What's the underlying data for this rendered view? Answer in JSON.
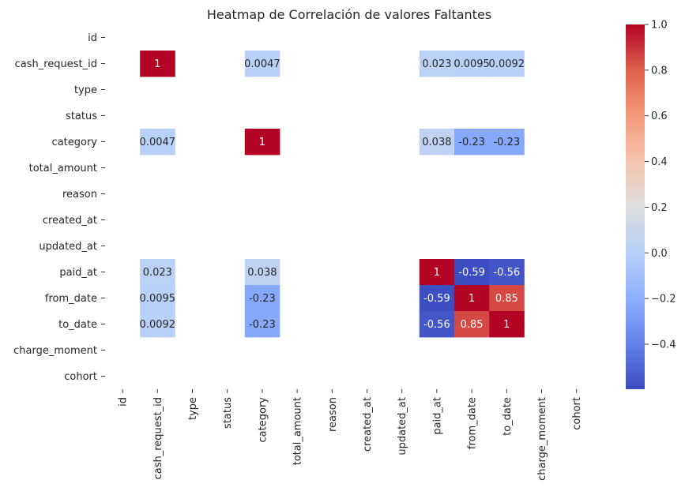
{
  "chart_data": {
    "type": "heatmap",
    "title": "Heatmap de Correlación de valores Faltantes",
    "xlabel": "",
    "ylabel": "",
    "colormap": "coolwarm",
    "vmin": -0.597,
    "vmax": 1.0,
    "rows": [
      "id",
      "cash_request_id",
      "type",
      "status",
      "category",
      "total_amount",
      "reason",
      "created_at",
      "updated_at",
      "paid_at",
      "from_date",
      "to_date",
      "charge_moment",
      "cohort"
    ],
    "columns": [
      "id",
      "cash_request_id",
      "type",
      "status",
      "category",
      "total_amount",
      "reason",
      "created_at",
      "updated_at",
      "paid_at",
      "from_date",
      "to_date",
      "charge_moment",
      "cohort"
    ],
    "cells": [
      {
        "row": "cash_request_id",
        "col": "cash_request_id",
        "value": 1,
        "label": "1"
      },
      {
        "row": "cash_request_id",
        "col": "category",
        "value": 0.0047,
        "label": "0.0047"
      },
      {
        "row": "cash_request_id",
        "col": "paid_at",
        "value": 0.023,
        "label": "0.023"
      },
      {
        "row": "cash_request_id",
        "col": "from_date",
        "value": 0.0095,
        "label": "0.0095"
      },
      {
        "row": "cash_request_id",
        "col": "to_date",
        "value": 0.0092,
        "label": "0.0092"
      },
      {
        "row": "category",
        "col": "cash_request_id",
        "value": 0.0047,
        "label": "0.0047"
      },
      {
        "row": "category",
        "col": "category",
        "value": 1,
        "label": "1"
      },
      {
        "row": "category",
        "col": "paid_at",
        "value": 0.038,
        "label": "0.038"
      },
      {
        "row": "category",
        "col": "from_date",
        "value": -0.23,
        "label": "-0.23"
      },
      {
        "row": "category",
        "col": "to_date",
        "value": -0.23,
        "label": "-0.23"
      },
      {
        "row": "paid_at",
        "col": "cash_request_id",
        "value": 0.023,
        "label": "0.023"
      },
      {
        "row": "paid_at",
        "col": "category",
        "value": 0.038,
        "label": "0.038"
      },
      {
        "row": "paid_at",
        "col": "paid_at",
        "value": 1,
        "label": "1"
      },
      {
        "row": "paid_at",
        "col": "from_date",
        "value": -0.59,
        "label": "-0.59"
      },
      {
        "row": "paid_at",
        "col": "to_date",
        "value": -0.56,
        "label": "-0.56"
      },
      {
        "row": "from_date",
        "col": "cash_request_id",
        "value": 0.0095,
        "label": "0.0095"
      },
      {
        "row": "from_date",
        "col": "category",
        "value": -0.23,
        "label": "-0.23"
      },
      {
        "row": "from_date",
        "col": "paid_at",
        "value": -0.59,
        "label": "-0.59"
      },
      {
        "row": "from_date",
        "col": "from_date",
        "value": 1,
        "label": "1"
      },
      {
        "row": "from_date",
        "col": "to_date",
        "value": 0.85,
        "label": "0.85"
      },
      {
        "row": "to_date",
        "col": "cash_request_id",
        "value": 0.0092,
        "label": "0.0092"
      },
      {
        "row": "to_date",
        "col": "category",
        "value": -0.23,
        "label": "-0.23"
      },
      {
        "row": "to_date",
        "col": "paid_at",
        "value": -0.56,
        "label": "-0.56"
      },
      {
        "row": "to_date",
        "col": "from_date",
        "value": 0.85,
        "label": "0.85"
      },
      {
        "row": "to_date",
        "col": "to_date",
        "value": 1,
        "label": "1"
      }
    ],
    "colorbar": {
      "ticks": [
        1.0,
        0.8,
        0.6,
        0.4,
        0.2,
        0.0,
        -0.2,
        -0.4
      ],
      "tick_labels": [
        "1.0",
        "0.8",
        "0.6",
        "0.4",
        "0.2",
        "0.0",
        "−0.2",
        "−0.4"
      ]
    },
    "grid": false,
    "legend": "colorbar-right"
  }
}
